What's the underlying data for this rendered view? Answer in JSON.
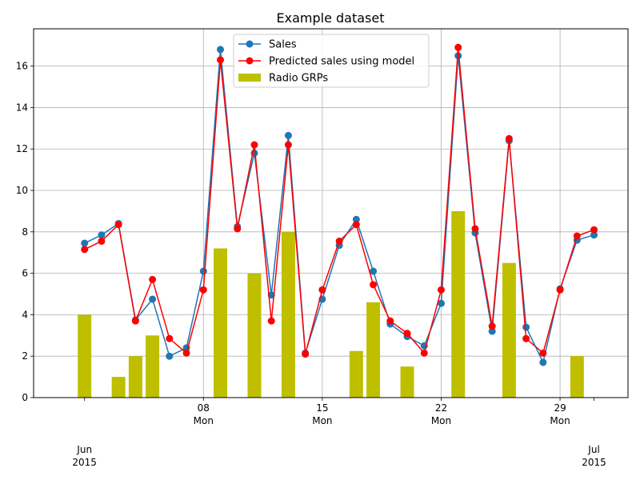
{
  "chart_data": {
    "type": "bar+line",
    "title": "Example dataset",
    "xlabel": "",
    "ylabel": "",
    "x_dates": [
      "2015-06-01",
      "2015-06-02",
      "2015-06-03",
      "2015-06-04",
      "2015-06-05",
      "2015-06-06",
      "2015-06-07",
      "2015-06-08",
      "2015-06-09",
      "2015-06-10",
      "2015-06-11",
      "2015-06-12",
      "2015-06-13",
      "2015-06-14",
      "2015-06-15",
      "2015-06-16",
      "2015-06-17",
      "2015-06-18",
      "2015-06-19",
      "2015-06-20",
      "2015-06-21",
      "2015-06-22",
      "2015-06-23",
      "2015-06-24",
      "2015-06-25",
      "2015-06-26",
      "2015-06-27",
      "2015-06-28",
      "2015-06-29",
      "2015-06-30",
      "2015-07-01"
    ],
    "xlim": [
      "2015-05-29",
      "2015-07-03"
    ],
    "ylim": [
      0,
      17.8
    ],
    "yticks": [
      0,
      2,
      4,
      6,
      8,
      10,
      12,
      14,
      16
    ],
    "ytick_labels": [
      "0",
      "2",
      "4",
      "6",
      "8",
      "10",
      "12",
      "14",
      "16"
    ],
    "xticks": [
      {
        "date": "2015-06-01",
        "day": "",
        "weekday": "",
        "month": "Jun",
        "year": "2015"
      },
      {
        "date": "2015-06-08",
        "day": "08",
        "weekday": "Mon",
        "month": "",
        "year": ""
      },
      {
        "date": "2015-06-15",
        "day": "15",
        "weekday": "Mon",
        "month": "",
        "year": ""
      },
      {
        "date": "2015-06-22",
        "day": "22",
        "weekday": "Mon",
        "month": "",
        "year": ""
      },
      {
        "date": "2015-06-29",
        "day": "29",
        "weekday": "Mon",
        "month": "",
        "year": ""
      },
      {
        "date": "2015-07-01",
        "day": "",
        "weekday": "",
        "month": "Jul",
        "year": "2015"
      }
    ],
    "grid": true,
    "legend_position": "top-center",
    "series": [
      {
        "name": "Sales",
        "kind": "line",
        "color": "#1f77b4",
        "values": [
          7.45,
          7.85,
          8.4,
          3.75,
          4.75,
          2.0,
          2.4,
          6.1,
          16.8,
          8.25,
          11.8,
          4.95,
          12.65,
          2.15,
          4.75,
          7.35,
          8.6,
          6.1,
          3.55,
          2.95,
          2.5,
          4.55,
          16.5,
          7.95,
          3.2,
          12.4,
          3.4,
          1.7,
          5.25,
          7.6,
          7.85
        ]
      },
      {
        "name": "Predicted sales using model",
        "kind": "line",
        "color": "#ff0000",
        "values": [
          7.15,
          7.55,
          8.35,
          3.7,
          5.7,
          2.85,
          2.15,
          5.2,
          16.3,
          8.15,
          12.2,
          3.7,
          12.2,
          2.1,
          5.2,
          7.55,
          8.35,
          5.45,
          3.7,
          3.1,
          2.15,
          5.2,
          16.9,
          8.15,
          3.45,
          12.5,
          2.85,
          2.15,
          5.2,
          7.8,
          8.1
        ]
      },
      {
        "name": "Radio GRPs",
        "kind": "bar",
        "color": "#bfbf00",
        "values": [
          4.0,
          0,
          1.0,
          2.0,
          3.0,
          0,
          0,
          0,
          7.2,
          0,
          6.0,
          0,
          8.0,
          0,
          0,
          0,
          2.25,
          4.6,
          0,
          1.5,
          0,
          0,
          9.0,
          0,
          0,
          6.5,
          0,
          0,
          0,
          2.0,
          0
        ]
      }
    ]
  }
}
